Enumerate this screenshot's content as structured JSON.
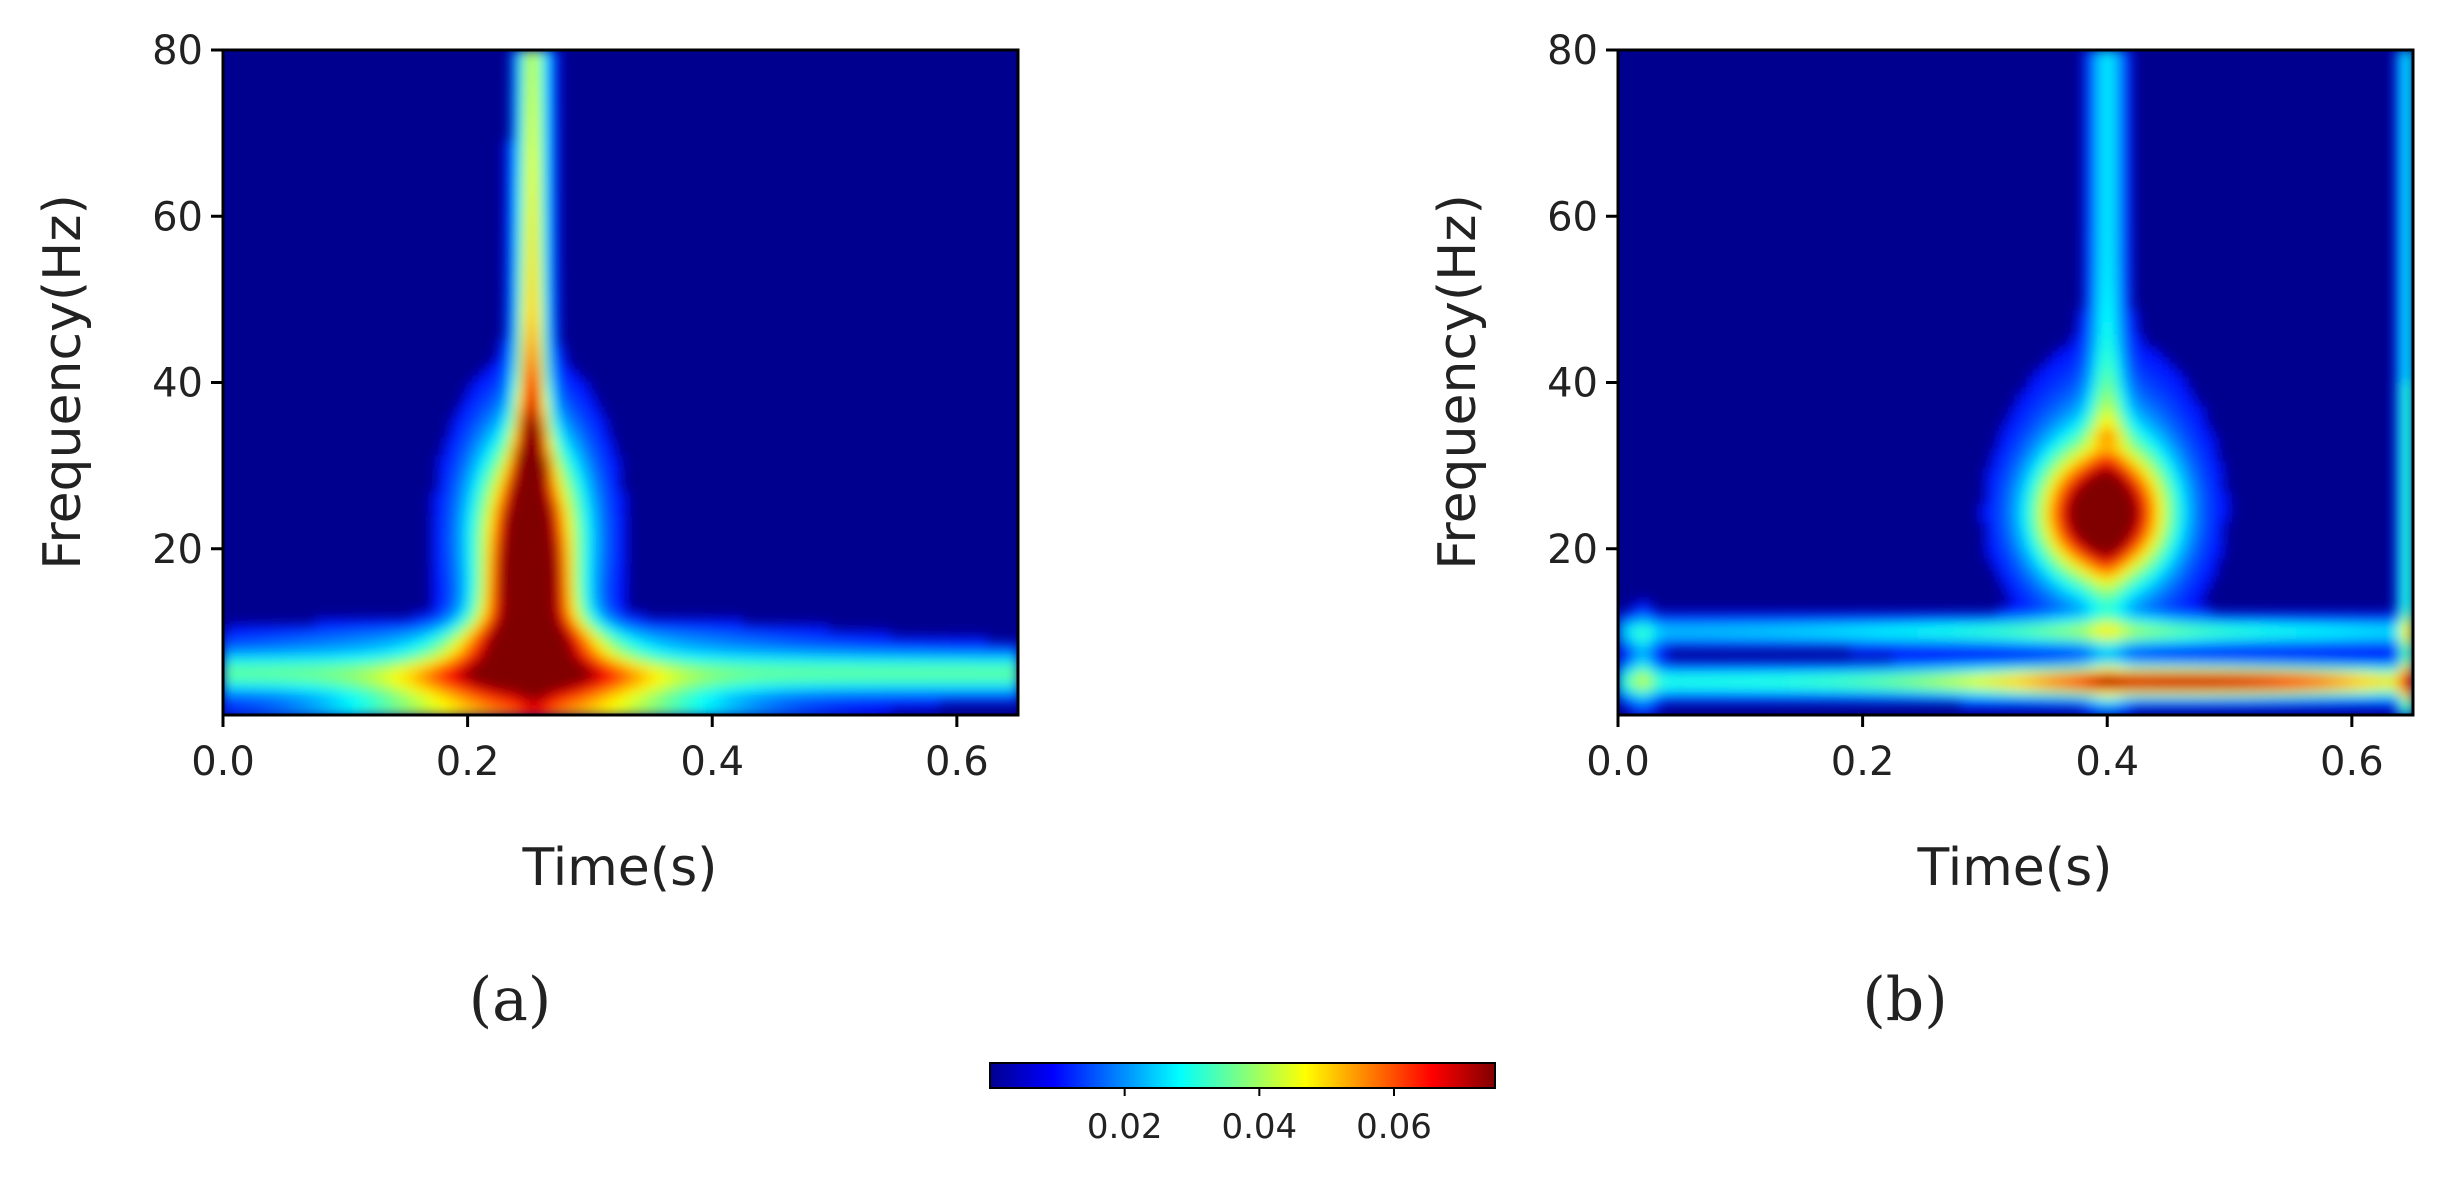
{
  "chart_data": [
    {
      "type": "heatmap",
      "panel_label": "(a)",
      "title": "",
      "xlabel": "Time(s)",
      "ylabel": "Frequency(Hz)",
      "xlim": [
        0,
        0.65
      ],
      "ylim": [
        0,
        80
      ],
      "x_ticks": [
        "0.0",
        "0.2",
        "0.4",
        "0.6"
      ],
      "y_ticks": [
        "20",
        "40",
        "60",
        "80"
      ],
      "colormap": "jet",
      "value_range": [
        0,
        0.075
      ],
      "features": [
        {
          "name": "main burst",
          "time": 0.25,
          "freq": 20,
          "peak": 0.072
        },
        {
          "name": "low-frequency band",
          "time_range": [
            0,
            0.65
          ],
          "freq": 5,
          "level": 0.03
        },
        {
          "name": "vertical stripe",
          "time": 0.255,
          "freq_range": [
            30,
            80
          ],
          "level": 0.026
        }
      ]
    },
    {
      "type": "heatmap",
      "panel_label": "(b)",
      "title": "",
      "xlabel": "Time(s)",
      "ylabel": "Frequency(Hz)",
      "xlim": [
        0,
        0.65
      ],
      "ylim": [
        0,
        80
      ],
      "x_ticks": [
        "0.0",
        "0.2",
        "0.4",
        "0.6"
      ],
      "y_ticks": [
        "20",
        "40",
        "60",
        "80"
      ],
      "colormap": "jet",
      "value_range": [
        0,
        0.075
      ],
      "features": [
        {
          "name": "burst",
          "time": 0.395,
          "freq": 24,
          "peak": 0.066
        },
        {
          "name": "low-frequency band",
          "time_range": [
            0,
            0.65
          ],
          "freq": 4,
          "peak_time": 0.47,
          "peak": 0.07
        },
        {
          "name": "vertical stripe",
          "time": 0.4,
          "freq_range": [
            35,
            80
          ],
          "level": 0.022
        }
      ]
    }
  ],
  "colorbar": {
    "ticks": [
      "0.02",
      "0.04",
      "0.06"
    ],
    "tick_values": [
      0.02,
      0.04,
      0.06
    ],
    "range": [
      0,
      0.075
    ],
    "colormap": "jet"
  }
}
